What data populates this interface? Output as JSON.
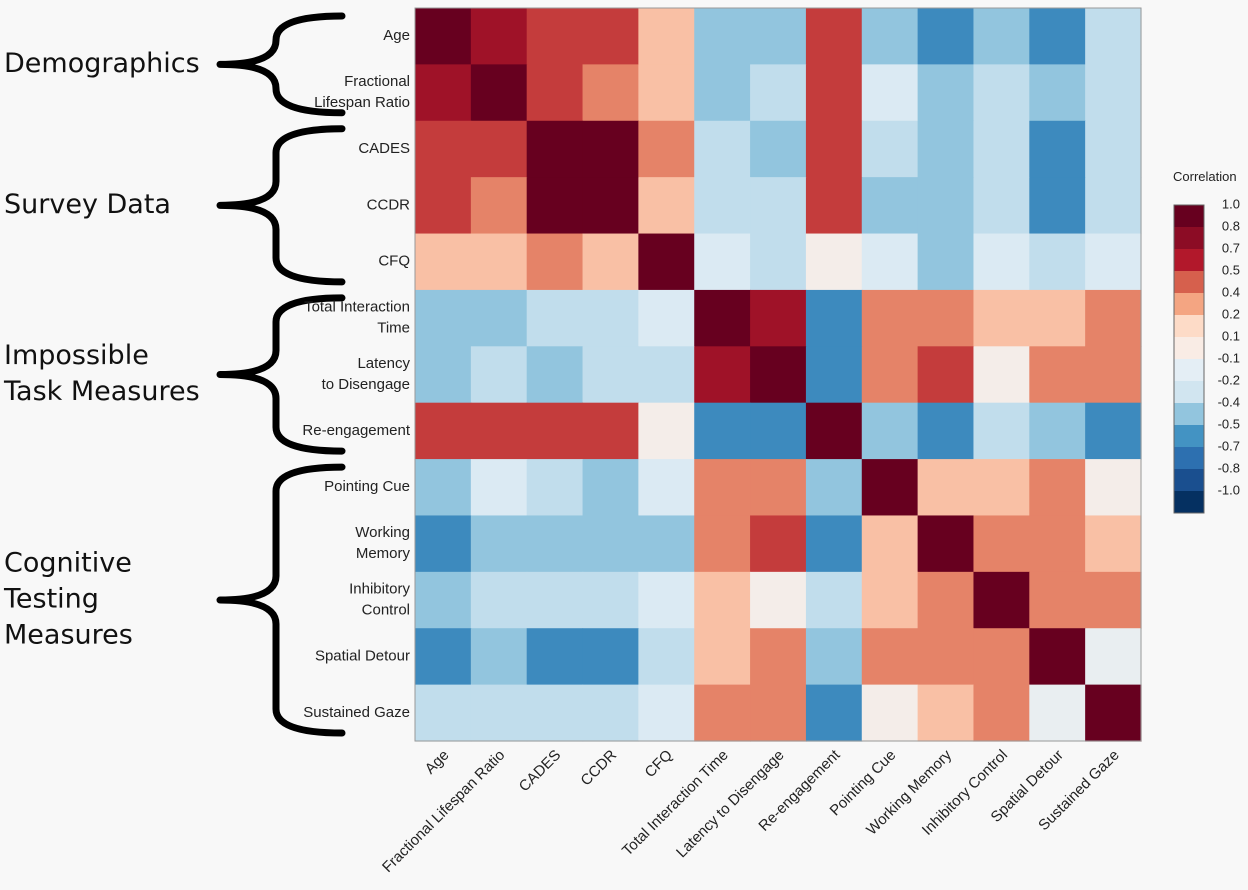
{
  "chart_data": {
    "type": "heatmap",
    "variables": [
      "Age",
      "Fractional Lifespan Ratio",
      "CADES",
      "CCDR",
      "CFQ",
      "Total Interaction Time",
      "Latency to Disengage",
      "Re-engagement",
      "Pointing Cue",
      "Working Memory",
      "Inhibitory Control",
      "Spatial Detour",
      "Sustained Gaze"
    ],
    "row_labels": [
      [
        "Age"
      ],
      [
        "Fractional",
        "Lifespan Ratio"
      ],
      [
        "CADES"
      ],
      [
        "CCDR"
      ],
      [
        "CFQ"
      ],
      [
        "Total Interaction",
        "Time"
      ],
      [
        "Latency",
        "to Disengage"
      ],
      [
        "Re-engagement"
      ],
      [
        "Pointing Cue"
      ],
      [
        "Working",
        "Memory"
      ],
      [
        "Inhibitory",
        "Control"
      ],
      [
        "Spatial Detour"
      ],
      [
        "Sustained Gaze"
      ]
    ],
    "matrix": [
      [
        1.0,
        0.75,
        0.6,
        0.6,
        0.3,
        -0.4,
        -0.4,
        0.6,
        -0.4,
        -0.55,
        -0.4,
        -0.55,
        -0.25
      ],
      [
        0.75,
        1.0,
        0.6,
        0.45,
        0.3,
        -0.4,
        -0.25,
        0.6,
        -0.15,
        -0.4,
        -0.25,
        -0.4,
        -0.25
      ],
      [
        0.6,
        0.6,
        1.0,
        1.0,
        0.45,
        -0.25,
        -0.4,
        0.6,
        -0.25,
        -0.4,
        -0.25,
        -0.55,
        -0.25
      ],
      [
        0.6,
        0.45,
        1.0,
        1.0,
        0.3,
        -0.25,
        -0.25,
        0.6,
        -0.4,
        -0.4,
        -0.25,
        -0.55,
        -0.25
      ],
      [
        0.3,
        0.3,
        0.45,
        0.3,
        1.0,
        -0.15,
        -0.25,
        0.05,
        -0.15,
        -0.4,
        -0.15,
        -0.25,
        -0.15
      ],
      [
        -0.4,
        -0.4,
        -0.25,
        -0.25,
        -0.15,
        1.0,
        0.75,
        -0.55,
        0.45,
        0.45,
        0.3,
        0.3,
        0.45
      ],
      [
        -0.4,
        -0.25,
        -0.4,
        -0.25,
        -0.25,
        0.75,
        1.0,
        -0.55,
        0.45,
        0.6,
        0.05,
        0.45,
        0.45
      ],
      [
        0.6,
        0.6,
        0.6,
        0.6,
        0.05,
        -0.55,
        -0.55,
        1.0,
        -0.4,
        -0.55,
        -0.25,
        -0.4,
        -0.55
      ],
      [
        -0.4,
        -0.15,
        -0.25,
        -0.4,
        -0.15,
        0.45,
        0.45,
        -0.4,
        1.0,
        0.3,
        0.3,
        0.45,
        0.05
      ],
      [
        -0.55,
        -0.4,
        -0.4,
        -0.4,
        -0.4,
        0.45,
        0.6,
        -0.55,
        0.3,
        1.0,
        0.45,
        0.45,
        0.3
      ],
      [
        -0.4,
        -0.25,
        -0.25,
        -0.25,
        -0.15,
        0.3,
        0.05,
        -0.25,
        0.3,
        0.45,
        1.0,
        0.45,
        0.45
      ],
      [
        -0.55,
        -0.4,
        -0.55,
        -0.55,
        -0.25,
        0.3,
        0.45,
        -0.4,
        0.45,
        0.45,
        0.45,
        1.0,
        -0.05
      ],
      [
        -0.25,
        -0.25,
        -0.25,
        -0.25,
        -0.15,
        0.45,
        0.45,
        -0.55,
        0.05,
        0.3,
        0.45,
        -0.05,
        1.0
      ]
    ],
    "groups": [
      {
        "label_lines": [
          "Demographics"
        ],
        "rows": [
          0,
          1
        ]
      },
      {
        "label_lines": [
          "Survey Data"
        ],
        "rows": [
          2,
          4
        ]
      },
      {
        "label_lines": [
          "Impossible",
          "Task Measures"
        ],
        "rows": [
          5,
          7
        ]
      },
      {
        "label_lines": [
          "Cognitive",
          "Testing",
          "Measures"
        ],
        "rows": [
          8,
          12
        ]
      }
    ],
    "legend": {
      "title": "Correlation",
      "ticks": [
        "1.0",
        "0.8",
        "0.7",
        "0.5",
        "0.4",
        "0.2",
        "0.1",
        "-0.1",
        "-0.2",
        "-0.4",
        "-0.5",
        "-0.7",
        "-0.8",
        "-1.0"
      ],
      "colors": [
        "#67001f",
        "#8c0c25",
        "#b2182b",
        "#d6604d",
        "#f4a582",
        "#fddbc7",
        "#f9ece5",
        "#e4eef5",
        "#d1e5f0",
        "#92c5de",
        "#4393c3",
        "#2d70b0",
        "#1a4f8f",
        "#053061"
      ]
    },
    "color_scale": {
      "domain": [
        -1.0,
        -0.8,
        -0.7,
        -0.5,
        -0.4,
        -0.2,
        -0.1,
        0.1,
        0.2,
        0.4,
        0.5,
        0.7,
        0.8,
        1.0
      ],
      "colors": [
        "#053061",
        "#1a4f8f",
        "#2d70b0",
        "#4393c3",
        "#92c5de",
        "#d1e5f0",
        "#e4eef5",
        "#f9ece5",
        "#fddbc7",
        "#f4a582",
        "#d6604d",
        "#b2182b",
        "#8c0c25",
        "#67001f"
      ]
    }
  }
}
